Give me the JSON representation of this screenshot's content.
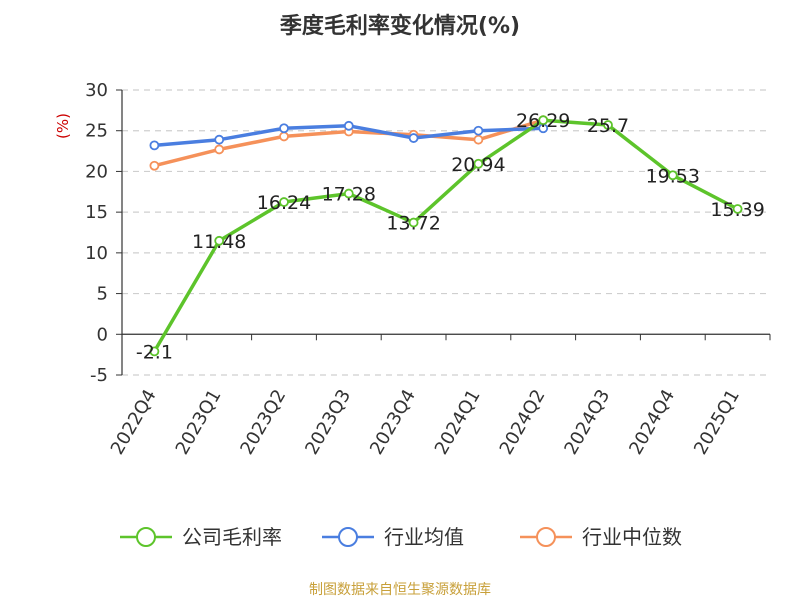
{
  "chart_data": {
    "type": "line",
    "title": "季度毛利率变化情况(%)",
    "ylabel": "(%)",
    "xlabel": "",
    "categories": [
      "2022Q4",
      "2023Q1",
      "2023Q2",
      "2023Q3",
      "2023Q4",
      "2024Q1",
      "2024Q2",
      "2024Q3",
      "2024Q4",
      "2025Q1"
    ],
    "ylim": [
      -5,
      30
    ],
    "yticks": [
      -5,
      0,
      5,
      10,
      15,
      20,
      25,
      30
    ],
    "grid": true,
    "legend_position": "bottom",
    "series": [
      {
        "name": "公司毛利率",
        "color": "#5dc42b",
        "values": [
          -2.1,
          11.48,
          16.24,
          17.28,
          13.72,
          20.94,
          26.29,
          25.7,
          19.53,
          15.39
        ],
        "labels": [
          "-2.1",
          "11.48",
          "16.24",
          "17.28",
          "13.72",
          "20.94",
          "26.29",
          "25.7",
          "19.53",
          "15.39"
        ]
      },
      {
        "name": "行业均值",
        "color": "#4a7ee0",
        "values": [
          23.2,
          23.9,
          25.3,
          25.6,
          24.1,
          25.0,
          25.3,
          null,
          null,
          null
        ]
      },
      {
        "name": "行业中位数",
        "color": "#f5915a",
        "values": [
          20.7,
          22.7,
          24.3,
          24.9,
          24.5,
          23.9,
          26.3,
          null,
          null,
          null
        ]
      }
    ]
  },
  "footer": {
    "source": "制图数据来自恒生聚源数据库"
  }
}
